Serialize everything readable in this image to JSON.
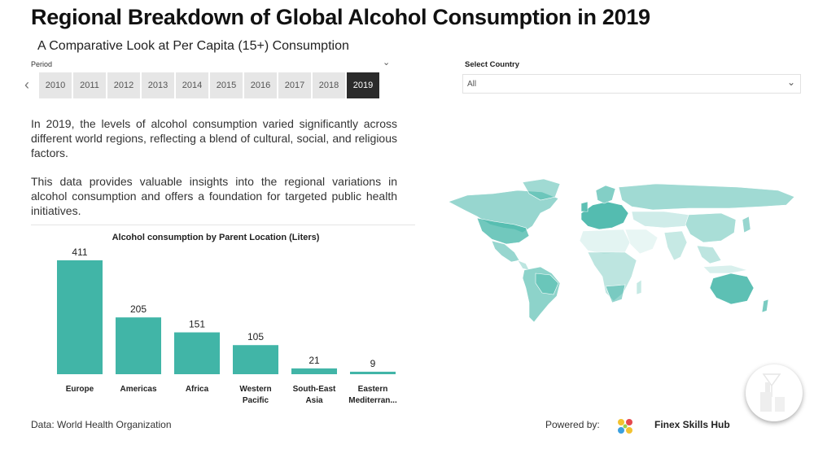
{
  "title": "Regional Breakdown of Global Alcohol Consumption in 2019",
  "subtitle": "A Comparative Look at Per Capita (15+) Consumption",
  "period": {
    "label": "Period",
    "years": [
      "2010",
      "2011",
      "2012",
      "2013",
      "2014",
      "2015",
      "2016",
      "2017",
      "2018",
      "2019"
    ],
    "selected": "2019"
  },
  "country_filter": {
    "label": "Select Country",
    "value": "All"
  },
  "description": {
    "p1": "In 2019, the levels of alcohol consumption varied significantly across different world regions, reflecting a blend of cultural, social, and religious factors.",
    "p2": "This data provides valuable insights into the regional variations in alcohol consumption and offers a foundation for targeted public health initiatives."
  },
  "chart_data": {
    "type": "bar",
    "title": "Alcohol consumption by Parent Location (Liters)",
    "categories": [
      "Europe",
      "Americas",
      "Africa",
      "Western Pacific",
      "South-East Asia",
      "Eastern Mediterran..."
    ],
    "category_lines": [
      [
        "Europe"
      ],
      [
        "Americas"
      ],
      [
        "Africa"
      ],
      [
        "Western",
        "Pacific"
      ],
      [
        "South-East",
        "Asia"
      ],
      [
        "Eastern",
        "Mediterran..."
      ]
    ],
    "values": [
      411,
      205,
      151,
      105,
      21,
      9
    ],
    "ylim": [
      0,
      411
    ],
    "color": "#41b5a7",
    "grid": false,
    "data_labels": true
  },
  "map": {
    "color": "#41b5a7"
  },
  "footer": {
    "source": "Data: World Health Organization",
    "powered_by": "Powered by:",
    "brand": "Finex Skills Hub"
  }
}
